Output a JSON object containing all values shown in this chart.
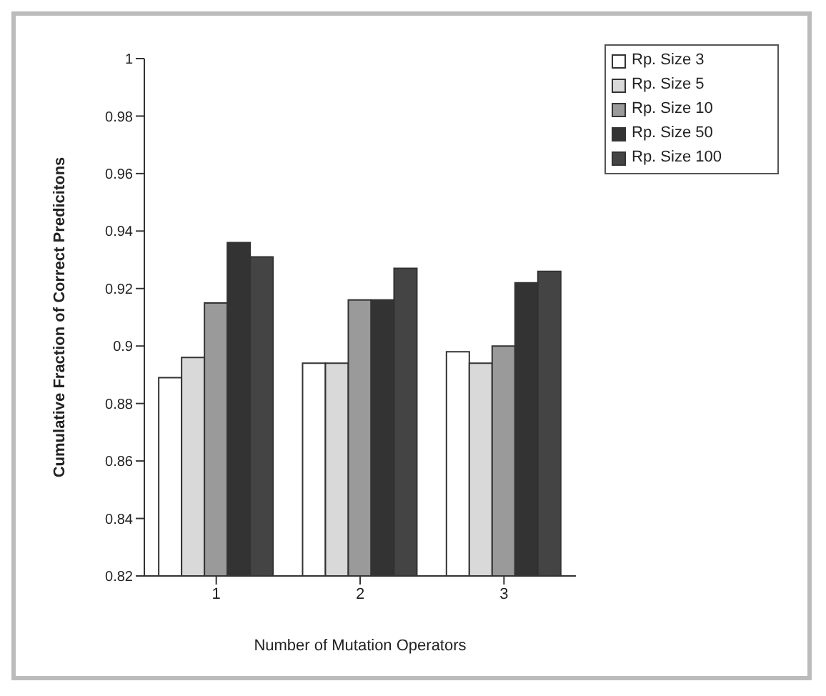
{
  "chart_data": {
    "type": "bar",
    "xlabel": "Number of Mutation Operators",
    "ylabel": "Cumulative Fraction of Correct Predicitons",
    "categories": [
      "1",
      "2",
      "3"
    ],
    "series": [
      {
        "name": "Rp. Size 3",
        "color": "#ffffff",
        "values": [
          0.889,
          0.894,
          0.898
        ]
      },
      {
        "name": "Rp. Size 5",
        "color": "#d9d9d9",
        "values": [
          0.896,
          0.894,
          0.894
        ]
      },
      {
        "name": "Rp. Size 10",
        "color": "#9a9a9a",
        "values": [
          0.915,
          0.916,
          0.9
        ]
      },
      {
        "name": "Rp. Size 50",
        "color": "#333333",
        "values": [
          0.936,
          0.916,
          0.922
        ]
      },
      {
        "name": "Rp. Size 100",
        "color": "#444444",
        "values": [
          0.931,
          0.927,
          0.926
        ]
      }
    ],
    "ylim": [
      0.82,
      1
    ],
    "yticks": [
      0.82,
      0.84,
      0.86,
      0.88,
      0.9,
      0.92,
      0.94,
      0.96,
      0.98,
      1
    ],
    "grid": false,
    "legend": "top right"
  }
}
